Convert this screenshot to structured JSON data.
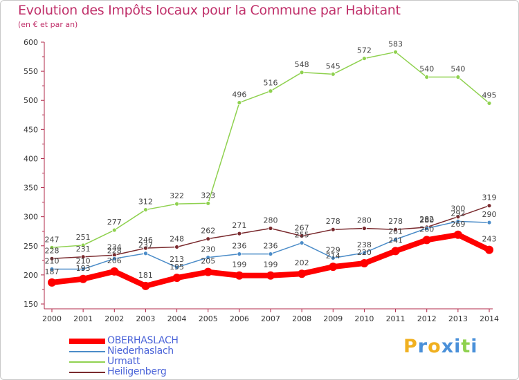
{
  "chart_data": {
    "type": "line",
    "title": "Evolution des Impôts locaux pour la Commune par Habitant",
    "subtitle": "(en € et par an)",
    "x": [
      2000,
      2001,
      2002,
      2003,
      2004,
      2005,
      2006,
      2007,
      2008,
      2009,
      2010,
      2011,
      2012,
      2013,
      2014
    ],
    "ylim": [
      150,
      600
    ],
    "yticks": [
      150,
      200,
      250,
      300,
      350,
      400,
      450,
      500,
      550,
      600
    ],
    "grid": false,
    "legend_position": "bottom-left",
    "series": [
      {
        "name": "OBERHASLACH",
        "color": "#ff0000",
        "values": [
          187,
          193,
          206,
          181,
          195,
          205,
          199,
          199,
          202,
          214,
          220,
          241,
          260,
          269,
          243
        ]
      },
      {
        "name": "Niederhaslach",
        "color": "#4b8cc8",
        "values": [
          210,
          210,
          228,
          237,
          213,
          230,
          236,
          236,
          255,
          229,
          238,
          261,
          280,
          292,
          290
        ]
      },
      {
        "name": "Urmatt",
        "color": "#8fd14f",
        "values": [
          247,
          251,
          277,
          312,
          322,
          323,
          496,
          516,
          548,
          545,
          572,
          583,
          540,
          540,
          495
        ]
      },
      {
        "name": "Heiligenberg",
        "color": "#7a2a2e",
        "values": [
          228,
          231,
          234,
          246,
          248,
          262,
          271,
          280,
          267,
          278,
          280,
          278,
          282,
          300,
          319
        ]
      }
    ],
    "data_labels": {
      "OBERHASLACH": [
        "187",
        "193",
        "206",
        "181",
        "195",
        "205",
        "199",
        "199",
        "202",
        "214",
        "220",
        "241",
        "260",
        "269",
        "243"
      ],
      "Niederhaslach": [
        "210",
        "210",
        "228",
        "237",
        "213",
        "230",
        "236",
        "236",
        "255",
        "229",
        "238",
        "261",
        "280",
        "292",
        "290"
      ],
      "Urmatt": [
        "247",
        "251",
        "277",
        "312",
        "322",
        "323",
        "496",
        "516",
        "548",
        "545",
        "572",
        "583",
        "540",
        "540",
        "495"
      ],
      "Heiligenberg": [
        "228",
        "231",
        "234",
        "246",
        "248",
        "262",
        "271",
        "280",
        "267",
        "278",
        "280",
        "278",
        "282",
        "300",
        "319"
      ]
    }
  },
  "logo": {
    "letters": [
      "P",
      "r",
      "o",
      "x",
      "i",
      "t",
      "i"
    ],
    "colors": [
      "#f0b020",
      "#4a90d9",
      "#f0b020",
      "#4a90d9",
      "#4a90d9",
      "#8fd14f",
      "#4a90d9"
    ]
  }
}
